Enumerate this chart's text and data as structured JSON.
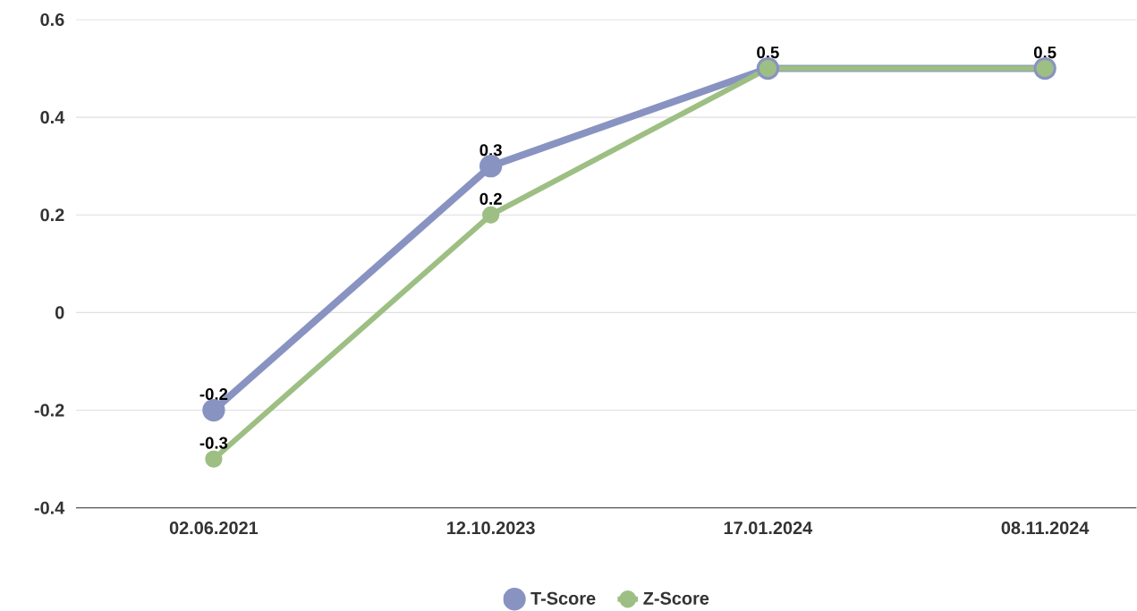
{
  "chart_data": {
    "type": "line",
    "categories": [
      "02.06.2021",
      "12.10.2023",
      "17.01.2024",
      "08.11.2024"
    ],
    "series": [
      {
        "name": "T-Score",
        "color": "#8993c1",
        "values": [
          -0.2,
          0.3,
          0.5,
          0.5
        ],
        "value_labels": [
          "-0.2",
          "0.3",
          null,
          null
        ]
      },
      {
        "name": "Z-Score",
        "color": "#9dbf83",
        "values": [
          -0.3,
          0.2,
          0.5,
          0.5
        ],
        "value_labels": [
          "-0.3",
          "0.2",
          "0.5",
          "0.5"
        ]
      }
    ],
    "ylim": [
      -0.4,
      0.6
    ],
    "yticks": [
      -0.4,
      -0.2,
      0,
      0.2,
      0.4,
      0.6
    ],
    "grid": "y",
    "legend": "bottom",
    "marker": "circle",
    "line_style": "solid"
  }
}
